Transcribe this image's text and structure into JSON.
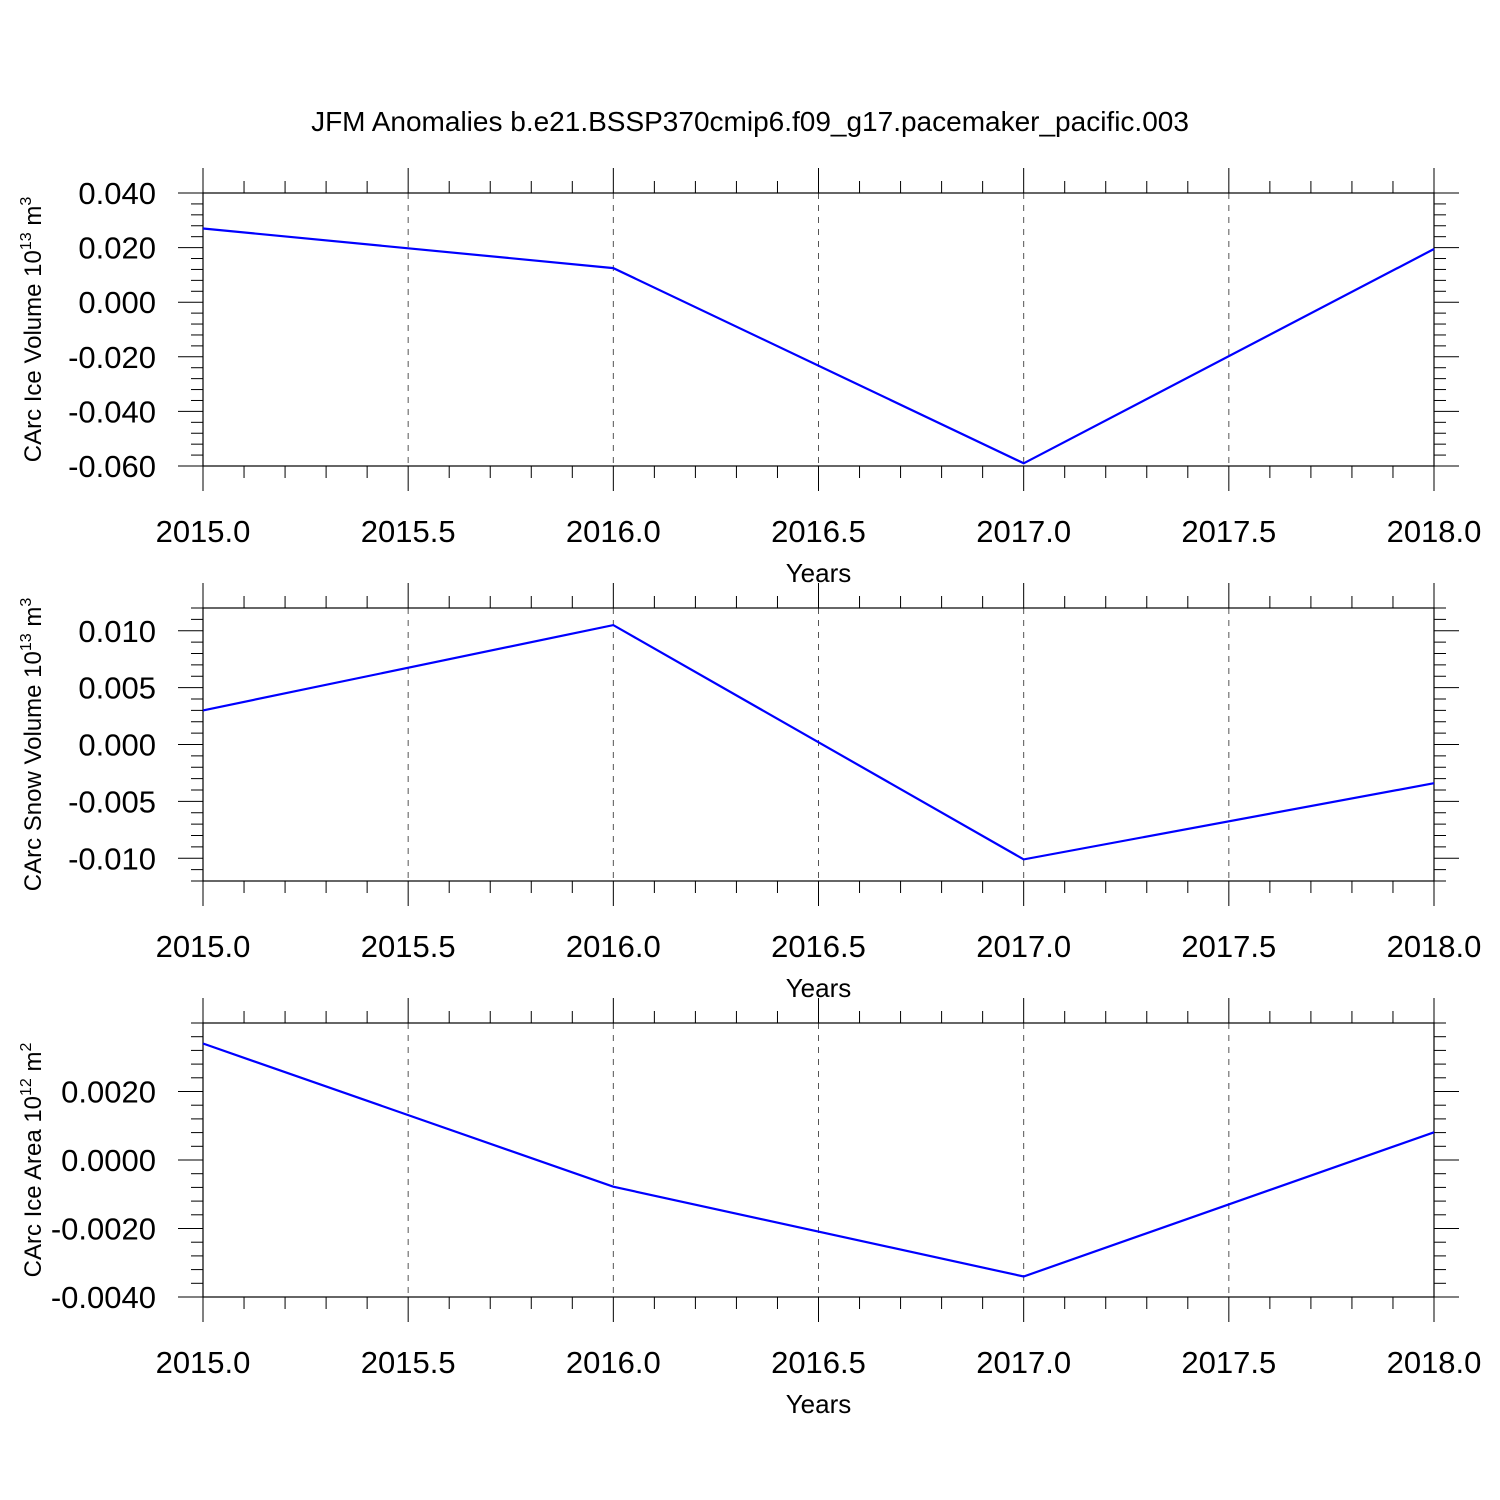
{
  "title": "JFM Anomalies b.e21.BSSP370cmip6.f09_g17.pacemaker_pacific.003",
  "colors": {
    "series": "#0000ff",
    "frame": "#000000",
    "grid": "#555555"
  },
  "chart_data": [
    {
      "type": "line",
      "xlabel": "Years",
      "ylabel": {
        "text": "CArc Ice Volume 10",
        "exp": "13",
        "unit": " m",
        "unit_exp": "3"
      },
      "xlim": [
        2015.0,
        2018.0
      ],
      "ylim": [
        -0.06,
        0.04
      ],
      "x_ticks": [
        "2015.0",
        "2015.5",
        "2016.0",
        "2016.5",
        "2017.0",
        "2017.5",
        "2018.0"
      ],
      "y_ticks": [
        "0.040",
        "0.020",
        "0.000",
        "-0.020",
        "-0.040",
        "-0.060"
      ],
      "y_tick_values": [
        0.04,
        0.02,
        0.0,
        -0.02,
        -0.04,
        -0.06
      ],
      "grid": "vertical dashed",
      "x": [
        2015,
        2016,
        2017,
        2018
      ],
      "values": [
        0.027,
        0.0125,
        -0.059,
        0.0195
      ]
    },
    {
      "type": "line",
      "xlabel": "Years",
      "ylabel": {
        "text": "CArc Snow Volume 10",
        "exp": "13",
        "unit": " m",
        "unit_exp": "3"
      },
      "xlim": [
        2015.0,
        2018.0
      ],
      "ylim": [
        -0.012,
        0.012
      ],
      "x_ticks": [
        "2015.0",
        "2015.5",
        "2016.0",
        "2016.5",
        "2017.0",
        "2017.5",
        "2018.0"
      ],
      "y_ticks": [
        "0.010",
        "0.005",
        "0.000",
        "-0.005",
        "-0.010"
      ],
      "y_tick_values": [
        0.01,
        0.005,
        0.0,
        -0.005,
        -0.01
      ],
      "grid": "vertical dashed",
      "x": [
        2015,
        2016,
        2017,
        2018
      ],
      "values": [
        0.003,
        0.0105,
        -0.0101,
        -0.0034
      ]
    },
    {
      "type": "line",
      "xlabel": "Years",
      "ylabel": {
        "text": "CArc Ice Area 10",
        "exp": "12",
        "unit": " m",
        "unit_exp": "2"
      },
      "xlim": [
        2015.0,
        2018.0
      ],
      "ylim": [
        -0.004,
        0.004
      ],
      "x_ticks": [
        "2015.0",
        "2015.5",
        "2016.0",
        "2016.5",
        "2017.0",
        "2017.5",
        "2018.0"
      ],
      "y_ticks": [
        "0.0020",
        "0.0000",
        "-0.0020",
        "-0.0040"
      ],
      "y_tick_values": [
        0.002,
        0.0,
        -0.002,
        -0.004
      ],
      "grid": "vertical dashed",
      "x": [
        2015,
        2016,
        2017,
        2018
      ],
      "values": [
        0.0034,
        -0.00078,
        -0.0034,
        0.00081
      ]
    }
  ]
}
